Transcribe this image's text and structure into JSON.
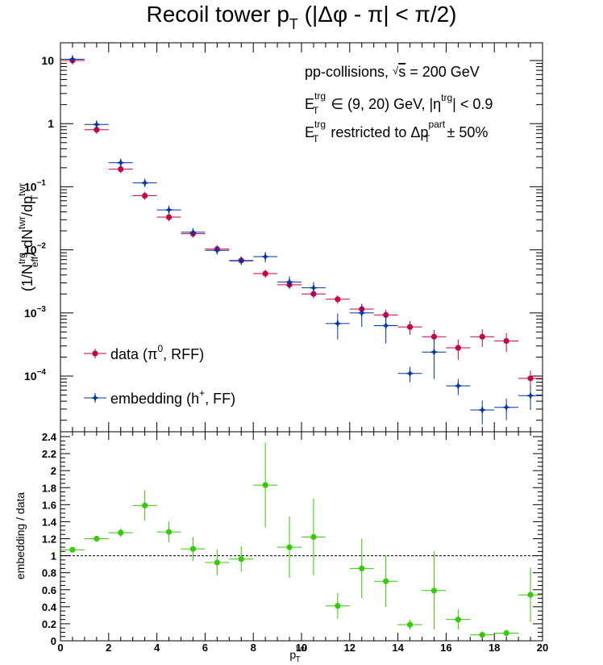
{
  "chart_data": [
    {
      "type": "scatter",
      "panel": "top",
      "title": "Recoil tower p",
      "title_sub": "T",
      "title_rest": " (|Δφ - π| < π/2)",
      "ylabel": "(1/N^trg_eff) dN^twr/dp^twr_T",
      "yscale": "log",
      "ylim": [
        2e-05,
        15
      ],
      "xlim": [
        0,
        20
      ],
      "grid": false,
      "annotations": [
        {
          "pre": "pp-collisions, ",
          "sqrt": "√",
          "s": "s",
          "post": " = 200 GeV"
        },
        {
          "E": "E",
          "sup": "trg",
          "sub": "T",
          "rest": " ∈ (9, 20) GeV, |η",
          "sup2": "trg",
          "rest2": "| < 0.9"
        },
        {
          "E": "E",
          "sup": "trg",
          "sub": "T",
          "rest": " restricted to Δp",
          "sup2": "part",
          "sub2": "T",
          "rest2": " ± 50%"
        }
      ],
      "legend_position": "bottom-left",
      "series": [
        {
          "name": "data (π⁰, RFF)",
          "name_main": "data (π",
          "name_sup": "0",
          "name_end": ", RFF)",
          "color": "#cc0044",
          "marker": "circle",
          "x": [
            0.5,
            1.5,
            2.5,
            3.5,
            4.5,
            5.5,
            6.5,
            7.5,
            8.5,
            9.5,
            10.5,
            11.5,
            12.5,
            13.5,
            14.5,
            15.5,
            16.5,
            17.5,
            18.5,
            19.5
          ],
          "y": [
            10,
            0.8,
            0.19,
            0.072,
            0.033,
            0.018,
            0.0103,
            0.0068,
            0.0042,
            0.0028,
            0.002,
            0.00165,
            0.00115,
            0.00093,
            0.0006,
            0.00042,
            0.00028,
            0.00042,
            0.00036,
            9.2e-05
          ],
          "yerr_lo": [
            0,
            0,
            0,
            0,
            0,
            0,
            0,
            0,
            0,
            0.0003,
            0.0003,
            0.00025,
            0.0002,
            0.0002,
            0.00015,
            0.00012,
            0.0001,
            0.00013,
            0.00012,
            3e-05
          ],
          "yerr_hi": [
            0,
            0,
            0,
            0,
            0,
            0,
            0,
            0,
            0,
            0.0003,
            0.0003,
            0.00025,
            0.0002,
            0.0002,
            0.00015,
            0.00012,
            0.0001,
            0.00013,
            0.00012,
            3e-05
          ]
        },
        {
          "name": "embedding (h⁺, FF)",
          "name_main": "embedding (h",
          "name_sup": "+",
          "name_end": ", FF)",
          "color": "#0033aa",
          "marker": "star",
          "x": [
            0.5,
            1.5,
            2.5,
            3.5,
            4.5,
            5.5,
            6.5,
            7.5,
            8.5,
            9.5,
            10.5,
            11.5,
            12.5,
            13.5,
            14.5,
            15.5,
            16.5,
            17.5,
            18.5,
            19.5
          ],
          "y": [
            10.5,
            0.97,
            0.24,
            0.115,
            0.043,
            0.019,
            0.0098,
            0.0067,
            0.0078,
            0.0031,
            0.0025,
            0.00068,
            0.001,
            0.00063,
            0.00011,
            0.00024,
            7e-05,
            2.9e-05,
            3.2e-05,
            4.9e-05
          ],
          "yerr_lo": [
            0,
            0,
            0,
            0,
            0,
            0,
            0,
            0,
            0.0015,
            0.0007,
            0.0006,
            0.0003,
            0.0004,
            0.0003,
            3e-05,
            0.00015,
            2e-05,
            1.2e-05,
            1.2e-05,
            2e-05
          ],
          "yerr_hi": [
            0,
            0,
            0,
            0,
            0,
            0,
            0,
            0,
            0.0015,
            0.0007,
            0.0006,
            0.0003,
            0.0004,
            0.0003,
            3e-05,
            0.00015,
            2e-05,
            1.2e-05,
            1.2e-05,
            2e-05
          ]
        }
      ]
    },
    {
      "type": "scatter",
      "panel": "bottom",
      "xlabel": "p^twr_T",
      "ylabel": "embedding / data",
      "xlim": [
        0,
        20
      ],
      "ylim": [
        0,
        2.4
      ],
      "reference_line": 1,
      "series": [
        {
          "name": "embedding / data",
          "color": "#33cc00",
          "x": [
            0.5,
            1.5,
            2.5,
            3.5,
            4.5,
            5.5,
            6.5,
            7.5,
            8.5,
            9.5,
            10.5,
            11.5,
            12.5,
            13.5,
            14.5,
            15.5,
            16.5,
            17.5,
            18.5,
            19.5
          ],
          "y": [
            1.07,
            1.2,
            1.27,
            1.59,
            1.28,
            1.08,
            0.92,
            0.96,
            1.83,
            1.1,
            1.22,
            0.41,
            0.85,
            0.7,
            0.19,
            0.59,
            0.25,
            0.07,
            0.09,
            0.54
          ],
          "yerr": [
            0.02,
            0.03,
            0.05,
            0.18,
            0.12,
            0.14,
            0.15,
            0.15,
            0.5,
            0.36,
            0.45,
            0.15,
            0.35,
            0.3,
            0.06,
            0.46,
            0.12,
            0.04,
            0.04,
            0.32
          ]
        }
      ]
    }
  ],
  "x_tick_labels": [
    "0",
    "2",
    "4",
    "6",
    "8",
    "10",
    "12",
    "14",
    "16",
    "18",
    "20"
  ],
  "top_y_tick_labels": [
    {
      "v": 10,
      "base": "10",
      "exp": ""
    },
    {
      "v": 1,
      "base": "1",
      "exp": ""
    },
    {
      "v": 0.1,
      "base": "10",
      "exp": "−1"
    },
    {
      "v": 0.01,
      "base": "10",
      "exp": "−2"
    },
    {
      "v": 0.001,
      "base": "10",
      "exp": "−3"
    },
    {
      "v": 0.0001,
      "base": "10",
      "exp": "−4"
    }
  ],
  "bottom_y_tick_labels": [
    "0",
    "0.2",
    "0.4",
    "0.6",
    "0.8",
    "1",
    "1.2",
    "1.4",
    "1.6",
    "1.8",
    "2",
    "2.2",
    "2.4"
  ],
  "xlabel_parts": {
    "main": "p",
    "sup": "twr",
    "sub": "T"
  },
  "ylabel_parts": {
    "a": "(1/N",
    "a_sup": "trg",
    "a_sub": "eff",
    "b": ") dN",
    "b_sup": "twr",
    "c": "/dp",
    "c_sup": "twr",
    "c_sub": "T"
  }
}
